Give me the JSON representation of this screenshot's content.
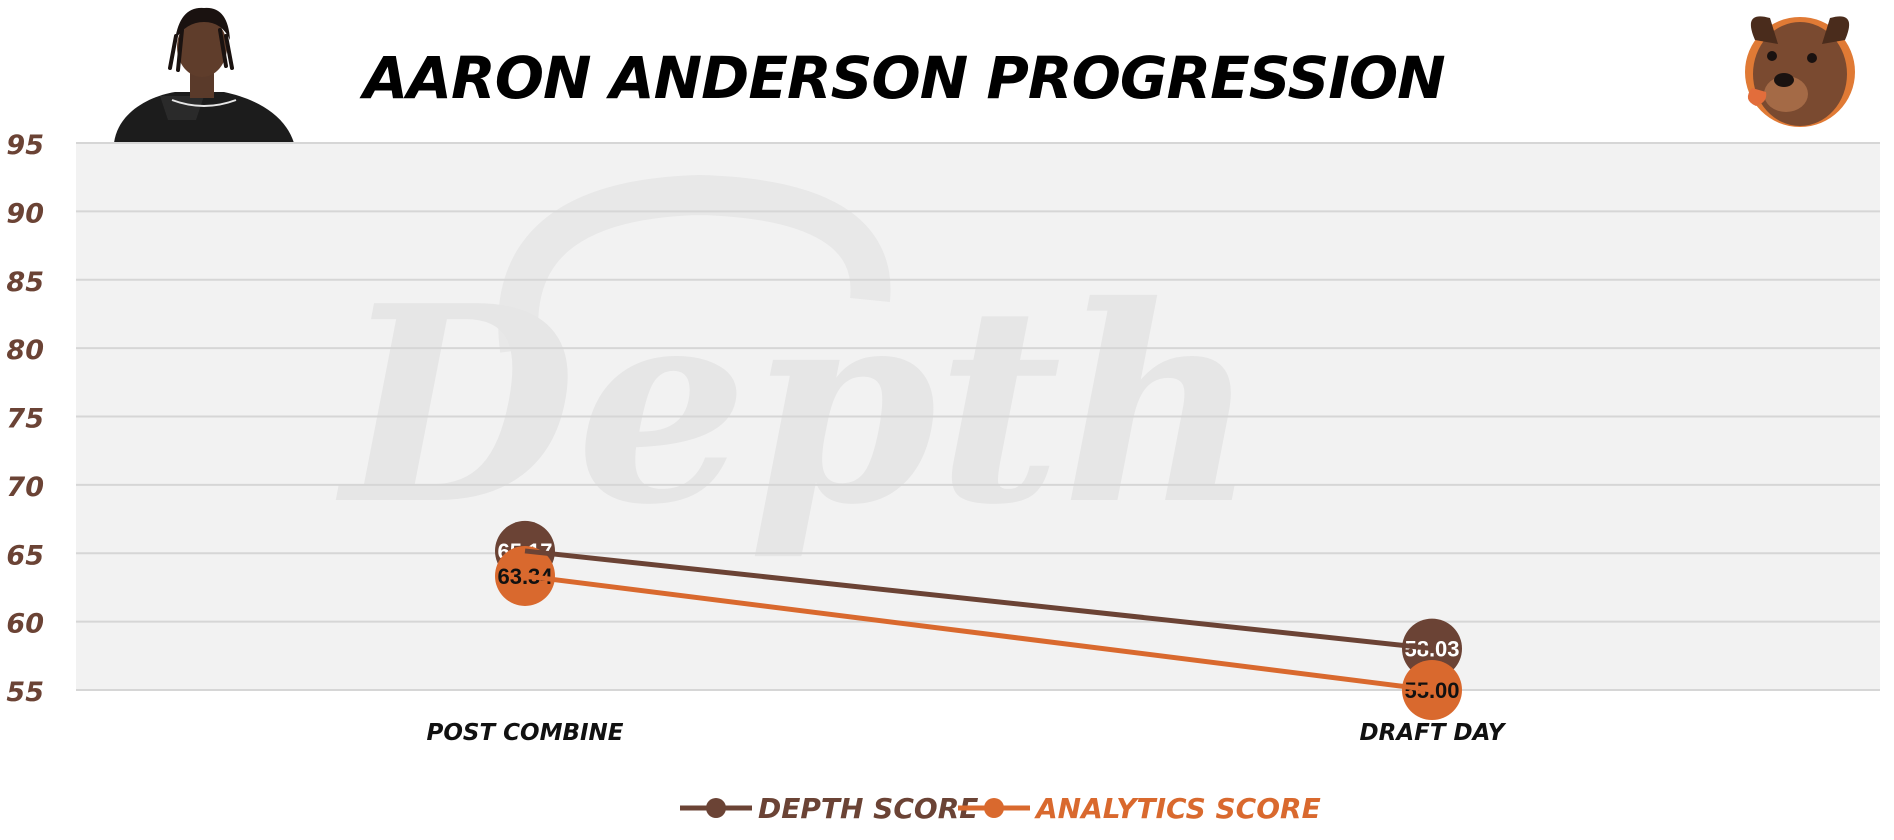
{
  "header": {
    "title": "AARON ANDERSON PROGRESSION",
    "player_photo_icon": "player-headshot",
    "team_logo_icon": "dog-mascot-logo",
    "watermark": "Depth"
  },
  "colors": {
    "depth": "#6b4335",
    "analytics": "#d9692e",
    "plot_bg": "#f2f2f2",
    "grid": "#d6d6d6",
    "tick": "#6b4335",
    "category": "#111111",
    "watermark": "#e6e6e6"
  },
  "chart_data": {
    "type": "line",
    "title": "AARON ANDERSON PROGRESSION",
    "categories": [
      "POST COMBINE",
      "DRAFT DAY"
    ],
    "series": [
      {
        "name": "DEPTH SCORE",
        "values": [
          65.17,
          58.03
        ],
        "labels": [
          "65.17",
          "58.03"
        ],
        "color": "#6b4335"
      },
      {
        "name": "ANALYTICS SCORE",
        "values": [
          63.34,
          55.0
        ],
        "labels": [
          "63.34",
          "55.00"
        ],
        "color": "#d9692e"
      }
    ],
    "ylim": [
      55,
      95
    ],
    "yticks": [
      "55",
      "60",
      "65",
      "70",
      "75",
      "80",
      "85",
      "90",
      "95"
    ],
    "xlabel": "",
    "ylabel": "",
    "grid": true,
    "legend": "bottom-center"
  }
}
